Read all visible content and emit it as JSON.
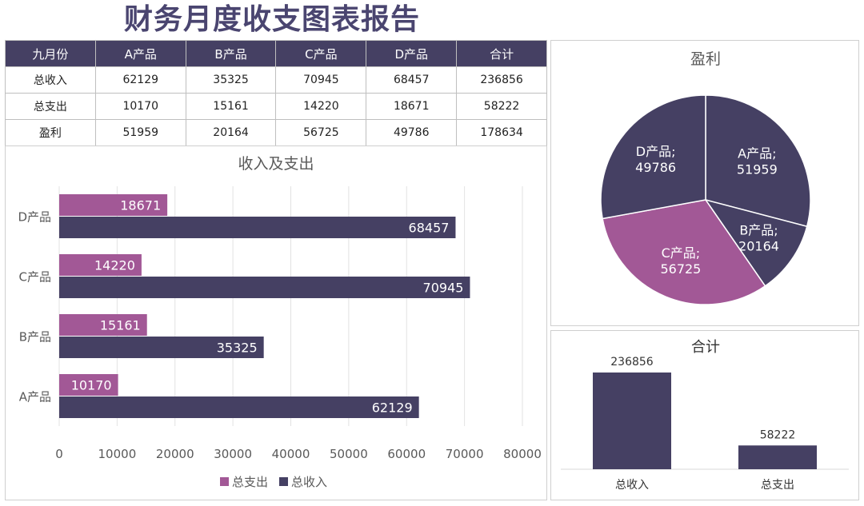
{
  "title": "财务月度收支图表报告",
  "table": {
    "headers": [
      "九月份",
      "A产品",
      "B产品",
      "C产品",
      "D产品",
      "合计"
    ],
    "rows": [
      [
        "总收入",
        "62129",
        "35325",
        "70945",
        "68457",
        "236856"
      ],
      [
        "总支出",
        "10170",
        "15161",
        "14220",
        "18671",
        "58222"
      ],
      [
        "盈利",
        "51959",
        "20164",
        "56725",
        "49786",
        "178634"
      ]
    ]
  },
  "colors": {
    "income": "#454063",
    "expense": "#a25896",
    "header_bg": "#454063",
    "title": "#4a4570"
  },
  "chart_data": [
    {
      "type": "bar",
      "orientation": "horizontal",
      "title": "收入及支出",
      "categories": [
        "A产品",
        "B产品",
        "C产品",
        "D产品"
      ],
      "series": [
        {
          "name": "总支出",
          "values": [
            10170,
            15161,
            14220,
            18671
          ],
          "color": "#a25896"
        },
        {
          "name": "总收入",
          "values": [
            62129,
            35325,
            70945,
            68457
          ],
          "color": "#454063"
        }
      ],
      "xlim": [
        0,
        80000
      ],
      "xticks": [
        "0",
        "10000",
        "20000",
        "30000",
        "40000",
        "50000",
        "60000",
        "70000",
        "80000"
      ],
      "grid": true,
      "legend": "bottom"
    },
    {
      "type": "pie",
      "title": "盈利",
      "labels": [
        "A产品",
        "B产品",
        "C产品",
        "D产品"
      ],
      "values": [
        51959,
        20164,
        56725,
        49786
      ],
      "colors": [
        "#454063",
        "#454063",
        "#a25896",
        "#454063"
      ]
    },
    {
      "type": "bar",
      "title": "合计",
      "categories": [
        "总收入",
        "总支出"
      ],
      "values": [
        236856,
        58222
      ],
      "color": "#454063"
    }
  ]
}
